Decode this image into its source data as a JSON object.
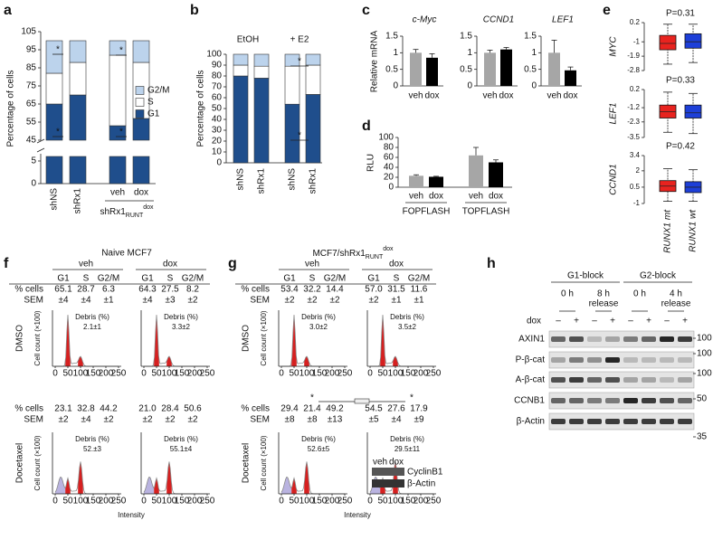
{
  "a": {
    "label": "a",
    "ylabel": "Percentage of cells",
    "ylim": [
      45,
      105
    ],
    "yticks": [
      45,
      55,
      65,
      75,
      85,
      95,
      105
    ],
    "lower_ylim": [
      0,
      6
    ],
    "lower_yticks": [
      0,
      5
    ],
    "categories": [
      "shNS",
      "shRx1",
      "veh",
      "dox"
    ],
    "group_label": {
      "main": "shRx1",
      "sub": "RUNT",
      "sup": "dox"
    },
    "series": [
      {
        "name": "G1",
        "color": "#1f4e8c",
        "values": [
          65,
          70,
          53,
          57
        ]
      },
      {
        "name": "S",
        "color": "#ffffff",
        "values": [
          17,
          18,
          39,
          31
        ]
      },
      {
        "name": "G2/M",
        "color": "#bcd3ec",
        "values": [
          18,
          12,
          8,
          12
        ]
      }
    ],
    "significance": "*"
  },
  "b": {
    "label": "b",
    "ylabel": "Percentage of cells",
    "ylim": [
      0,
      100
    ],
    "yticks": [
      0,
      10,
      20,
      30,
      40,
      50,
      60,
      70,
      80,
      90,
      100
    ],
    "groups": [
      "EtOH",
      "+ E2"
    ],
    "categories": [
      "shNS",
      "shRx1",
      "shNS",
      "shRx1"
    ],
    "series": [
      {
        "name": "G1",
        "color": "#1f4e8c",
        "values": [
          80,
          78,
          54,
          63
        ]
      },
      {
        "name": "S",
        "color": "#ffffff",
        "values": [
          10,
          11,
          35,
          27
        ]
      },
      {
        "name": "G2/M",
        "color": "#bcd3ec",
        "values": [
          10,
          11,
          11,
          10
        ]
      }
    ],
    "significance": "*"
  },
  "c": {
    "label": "c",
    "ylabel": "Relative mRNA",
    "ylim": [
      0,
      1.5
    ],
    "yticks": [
      0,
      0.5,
      1,
      1.5
    ],
    "categories": [
      "veh",
      "dox"
    ],
    "colors": [
      "#a6a6a6",
      "#000000"
    ],
    "genes": [
      {
        "name": "c-Myc",
        "values": [
          1,
          0.85
        ],
        "errors": [
          0.1,
          0.12
        ]
      },
      {
        "name": "CCND1",
        "values": [
          1,
          1.1
        ],
        "errors": [
          0.08,
          0.06
        ]
      },
      {
        "name": "LEF1",
        "values": [
          1,
          0.47
        ],
        "errors": [
          0.38,
          0.1
        ]
      }
    ]
  },
  "d": {
    "label": "d",
    "ylabel": "RLU",
    "ylim": [
      0,
      100
    ],
    "yticks": [
      0,
      20,
      40,
      60,
      80,
      100
    ],
    "categories": [
      "veh",
      "dox"
    ],
    "colors": [
      "#a6a6a6",
      "#000000"
    ],
    "groups": [
      {
        "name": "FOPFLASH",
        "values": [
          23,
          21
        ],
        "errors": [
          2,
          1
        ]
      },
      {
        "name": "TOPFLASH",
        "values": [
          64,
          50
        ],
        "errors": [
          16,
          5
        ]
      }
    ]
  },
  "e": {
    "label": "e",
    "categories": [
      "RUNX1 mt",
      "RUNX1 wt"
    ],
    "colors": [
      "#e8231f",
      "#1d3fd8"
    ],
    "genes": [
      {
        "name": "MYC",
        "p": "P=0.31",
        "ylim": [
          -2.8,
          0.2
        ],
        "yticks": [
          0.2,
          -1,
          -1.9,
          -2.8
        ],
        "boxes": [
          {
            "min": -2.4,
            "q1": -1.5,
            "median": -1.1,
            "q3": -0.6,
            "max": 0.1
          },
          {
            "min": -2.3,
            "q1": -1.4,
            "median": -1.0,
            "q3": -0.5,
            "max": 0.1
          }
        ]
      },
      {
        "name": "LEF1",
        "p": "P=0.33",
        "ylim": [
          -3.5,
          0.2
        ],
        "yticks": [
          0.2,
          -1.2,
          -2.3,
          -3.5
        ],
        "boxes": [
          {
            "min": -3.1,
            "q1": -2.0,
            "median": -1.5,
            "q3": -1.0,
            "max": 0
          },
          {
            "min": -3.2,
            "q1": -2.0,
            "median": -1.6,
            "q3": -1.0,
            "max": -0.1
          }
        ]
      },
      {
        "name": "CCND1",
        "p": "P=0.42",
        "ylim": [
          -1,
          3.4
        ],
        "yticks": [
          3.4,
          2,
          0.5,
          -1
        ],
        "boxes": [
          {
            "min": -0.8,
            "q1": 0.1,
            "median": 0.6,
            "q3": 1.1,
            "max": 2.2
          },
          {
            "min": -0.8,
            "q1": 0,
            "median": 0.5,
            "q3": 1.0,
            "max": 2.1
          }
        ]
      }
    ]
  },
  "f": {
    "label": "f",
    "title": "Naive MCF7",
    "conditions": [
      "veh",
      "dox"
    ],
    "phases": [
      "G1",
      "S",
      "G2/M"
    ],
    "row_labels": [
      "% cells",
      "SEM"
    ],
    "debris_label": "Debris (%)",
    "ylabel": "Cell count (×100)",
    "xlabel": "Intensity",
    "xlim": [
      0,
      250
    ],
    "xticks": [
      0,
      50,
      100,
      150,
      200,
      250
    ],
    "treatments": [
      {
        "name": "DMSO",
        "cells": [
          [
            "65.1",
            "28.7",
            "6.3"
          ],
          [
            "64.3",
            "27.5",
            "8.2"
          ]
        ],
        "sem": [
          [
            "±4",
            "±4",
            "±1"
          ],
          [
            "±4",
            "±3",
            "±2"
          ]
        ],
        "debris": [
          "2.1±1",
          "3.3±2"
        ]
      },
      {
        "name": "Docetaxel",
        "cells": [
          [
            "23.1",
            "32.8",
            "44.2"
          ],
          [
            "21.0",
            "28.4",
            "50.6"
          ]
        ],
        "sem": [
          [
            "±2",
            "±4",
            "±2"
          ],
          [
            "±2",
            "±2",
            "±2"
          ]
        ],
        "debris": [
          "52.±3",
          "55.1±4"
        ]
      }
    ]
  },
  "g": {
    "label": "g",
    "title": {
      "main": "MCF7/shRx1",
      "sub": "RUNT",
      "sup": "dox"
    },
    "conditions": [
      "veh",
      "dox"
    ],
    "phases": [
      "G1",
      "S",
      "G2/M"
    ],
    "row_labels": [
      "% cells",
      "SEM"
    ],
    "debris_label": "Debris (%)",
    "ylabel": "Cell count (×100)",
    "xlabel": "Intensity",
    "xlim": [
      0,
      250
    ],
    "xticks": [
      0,
      50,
      100,
      150,
      200,
      250
    ],
    "treatments": [
      {
        "name": "DMSO",
        "cells": [
          [
            "53.4",
            "32.2",
            "14.4"
          ],
          [
            "57.0",
            "31.5",
            "11.6"
          ]
        ],
        "sem": [
          [
            "±2",
            "±2",
            "±2"
          ],
          [
            "±2",
            "±1",
            "±1"
          ]
        ],
        "debris": [
          "3.0±2",
          "3.5±2"
        ]
      },
      {
        "name": "Docetaxel",
        "cells": [
          [
            "29.4",
            "21.4",
            "49.2"
          ],
          [
            "54.5",
            "27.6",
            "17.9"
          ]
        ],
        "sem": [
          [
            "±8",
            "±8",
            "±13"
          ],
          [
            "±5",
            "±4",
            "±9"
          ]
        ],
        "debris": [
          "52.6±5",
          "29.5±11"
        ]
      }
    ],
    "significance": "*",
    "inset": {
      "lanes": [
        "veh",
        "dox"
      ],
      "bands": [
        "CyclinB1",
        "β-Actin"
      ]
    }
  },
  "h": {
    "label": "h",
    "blocks": [
      {
        "name": "G1-block",
        "times": [
          [
            "0 h"
          ],
          [
            "8 h",
            "release"
          ]
        ]
      },
      {
        "name": "G2-block",
        "times": [
          [
            "0 h"
          ],
          [
            "4 h",
            "release"
          ]
        ]
      }
    ],
    "treatment": "dox",
    "signs": [
      "–",
      "+"
    ],
    "rows": [
      "AXIN1",
      "P-β-cat",
      "A-β-cat",
      "CCNB1",
      "β-Actin"
    ],
    "markers": [
      100,
      100,
      100,
      50,
      35
    ]
  }
}
